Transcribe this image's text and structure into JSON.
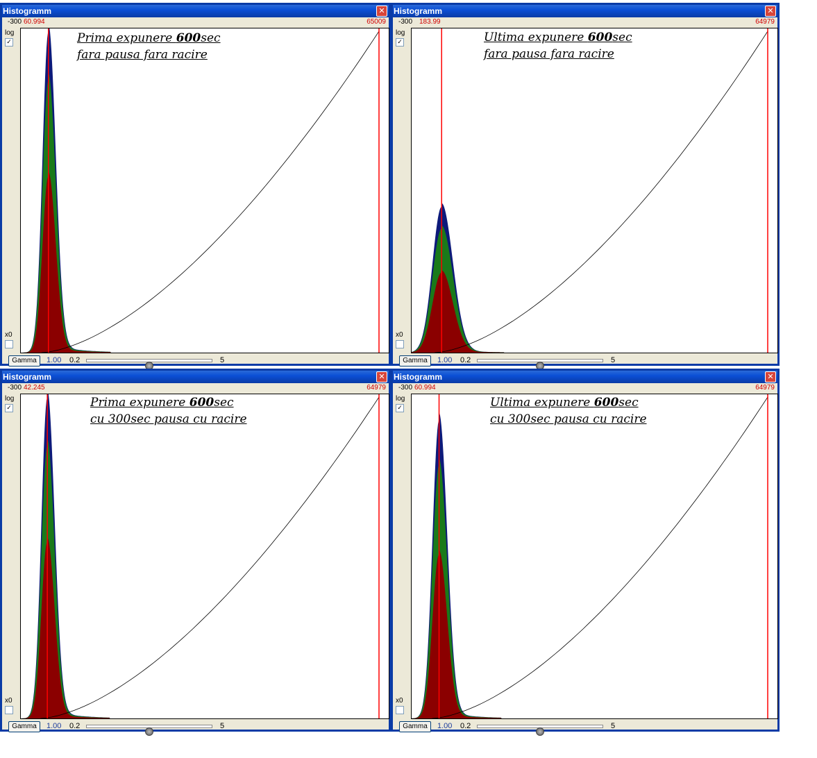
{
  "windows": [
    {
      "title": "Histogramm",
      "min": "-300",
      "current": "60.994",
      "max": "65009",
      "log_label": "log",
      "log_checked": true,
      "x0_label": "x0",
      "x0_checked": false,
      "label_line1_a": "Prima expunere ",
      "label_line1_b": "600",
      "label_line1_c": "sec",
      "label_line2": "fara pausa fara racire",
      "gamma_button": "Gamma",
      "gamma_value": "1.00",
      "slider_min": "0.2",
      "slider_max": "5",
      "slider_value": 0.5,
      "peak_position": 0.075,
      "peak_height": 0.99,
      "peak_width": 0.018
    },
    {
      "title": "Histogramm",
      "min": "-300",
      "current": "183.99",
      "max": "64979",
      "log_label": "log",
      "log_checked": true,
      "x0_label": "x0",
      "x0_checked": false,
      "label_line1_a": "Ultima expunere ",
      "label_line1_b": "600",
      "label_line1_c": "sec",
      "label_line2": "fara pausa fara racire",
      "gamma_button": "Gamma",
      "gamma_value": "1.00",
      "slider_min": "0.2",
      "slider_max": "5",
      "slider_value": 0.5,
      "peak_position": 0.082,
      "peak_height": 0.45,
      "peak_width": 0.028
    },
    {
      "title": "Histogramm",
      "min": "-300",
      "current": "42.245",
      "max": "64979",
      "log_label": "log",
      "log_checked": true,
      "x0_label": "x0",
      "x0_checked": false,
      "label_line1_a": "Prima expunere ",
      "label_line1_b": "600",
      "label_line1_c": "sec",
      "label_line2": "cu 300sec pausa cu racire",
      "gamma_button": "Gamma",
      "gamma_value": "1.00",
      "slider_min": "0.2",
      "slider_max": "5",
      "slider_value": 0.5,
      "peak_position": 0.072,
      "peak_height": 0.99,
      "peak_width": 0.018
    },
    {
      "title": "Histogramm",
      "min": "-300",
      "current": "60.994",
      "max": "64979",
      "log_label": "log",
      "log_checked": true,
      "x0_label": "x0",
      "x0_checked": false,
      "label_line1_a": "Ultima expunere ",
      "label_line1_b": "600",
      "label_line1_c": "sec",
      "label_line2": "cu 300sec pausa cu racire",
      "gamma_button": "Gamma",
      "gamma_value": "1.00",
      "slider_min": "0.2",
      "slider_max": "5",
      "slider_value": 0.5,
      "peak_position": 0.075,
      "peak_height": 0.92,
      "peak_width": 0.02
    }
  ],
  "colors": {
    "title_bar": "#0a3ba6",
    "hist_blue": "#0d1a7a",
    "hist_green": "#1a7a1a",
    "hist_red": "#8b0000",
    "marker_red": "#ff0000",
    "curve": "#000000"
  }
}
